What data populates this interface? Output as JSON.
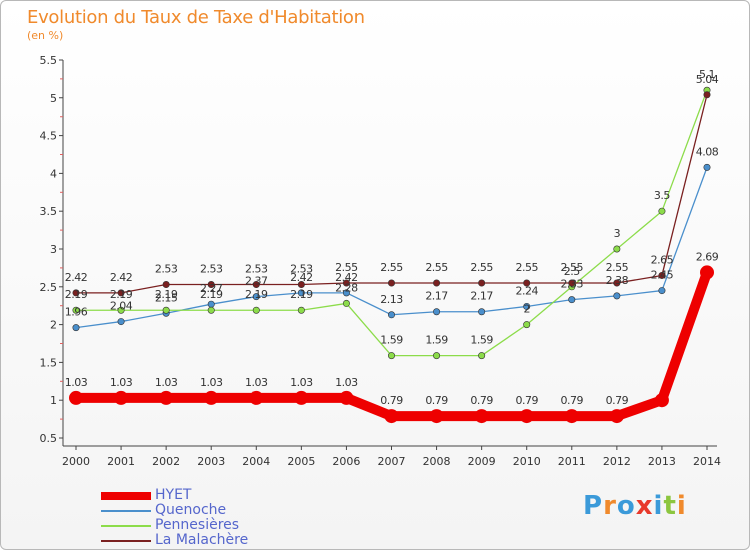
{
  "title": "Evolution du Taux de Taxe d'Habitation",
  "subtitle": "(en %)",
  "logo": {
    "text": "Proxiti",
    "letters": [
      "P",
      "r",
      "o",
      "x",
      "i",
      "t",
      "i"
    ],
    "colors": [
      "#3b9ad9",
      "#f08a2c",
      "#3b9ad9",
      "#e8392b",
      "#3b9ad9",
      "#8cc63f",
      "#f08a2c"
    ]
  },
  "chart_data": {
    "type": "line",
    "x": [
      "2000",
      "2001",
      "2002",
      "2003",
      "2004",
      "2005",
      "2006",
      "2007",
      "2008",
      "2009",
      "2010",
      "2011",
      "2012",
      "2013",
      "2014"
    ],
    "ylim": [
      0.5,
      5.5
    ],
    "yticks": [
      "0.5",
      "1",
      "1.5",
      "2",
      "2.5",
      "3",
      "3.5",
      "4",
      "4.5",
      "5",
      "5.5"
    ],
    "grid": false,
    "legend_position": "bottom-left",
    "series": [
      {
        "name": "HYET",
        "color": "#ee0000",
        "values": [
          1.03,
          1.03,
          1.03,
          1.03,
          1.03,
          1.03,
          1.03,
          0.79,
          0.79,
          0.79,
          0.79,
          0.79,
          0.79,
          1.0,
          2.69
        ],
        "labels": [
          "1.03",
          "1.03",
          "1.03",
          "1.03",
          "1.03",
          "1.03",
          "1.03",
          "0.79",
          "0.79",
          "0.79",
          "0.79",
          "0.79",
          "0.79",
          "",
          "2.69"
        ]
      },
      {
        "name": "Quenoche",
        "color": "#4a8fcc",
        "values": [
          1.96,
          2.04,
          2.15,
          2.27,
          2.37,
          2.42,
          2.42,
          2.13,
          2.17,
          2.17,
          2.24,
          2.33,
          2.38,
          2.45,
          4.08
        ],
        "labels": [
          "1.96",
          "2.04",
          "2.15",
          "2.27",
          "2.37",
          "2.42",
          "2.42",
          "2.13",
          "2.17",
          "2.17",
          "2.24",
          "2.33",
          "2.38",
          "2.45",
          "4.08"
        ]
      },
      {
        "name": "Pennesières",
        "color": "#8cdc4a",
        "values": [
          2.19,
          2.19,
          2.19,
          2.19,
          2.19,
          2.19,
          2.28,
          1.59,
          1.59,
          1.59,
          2.0,
          2.5,
          3.0,
          3.5,
          5.1
        ],
        "labels": [
          "2.19",
          "2.19",
          "2.19",
          "2.19",
          "2.19",
          "2.19",
          "2.28",
          "1.59",
          "1.59",
          "1.59",
          "2",
          "2.5",
          "3",
          "3.5",
          "5.1"
        ]
      },
      {
        "name": "La Malachère",
        "color": "#7a2020",
        "values": [
          2.42,
          2.42,
          2.53,
          2.53,
          2.53,
          2.53,
          2.55,
          2.55,
          2.55,
          2.55,
          2.55,
          2.55,
          2.55,
          2.65,
          5.04
        ],
        "labels": [
          "2.42",
          "2.42",
          "2.53",
          "2.53",
          "2.53",
          "2.53",
          "2.55",
          "2.55",
          "2.55",
          "2.55",
          "2.55",
          "2.55",
          "2.55",
          "2.65",
          "5.04"
        ]
      }
    ]
  }
}
